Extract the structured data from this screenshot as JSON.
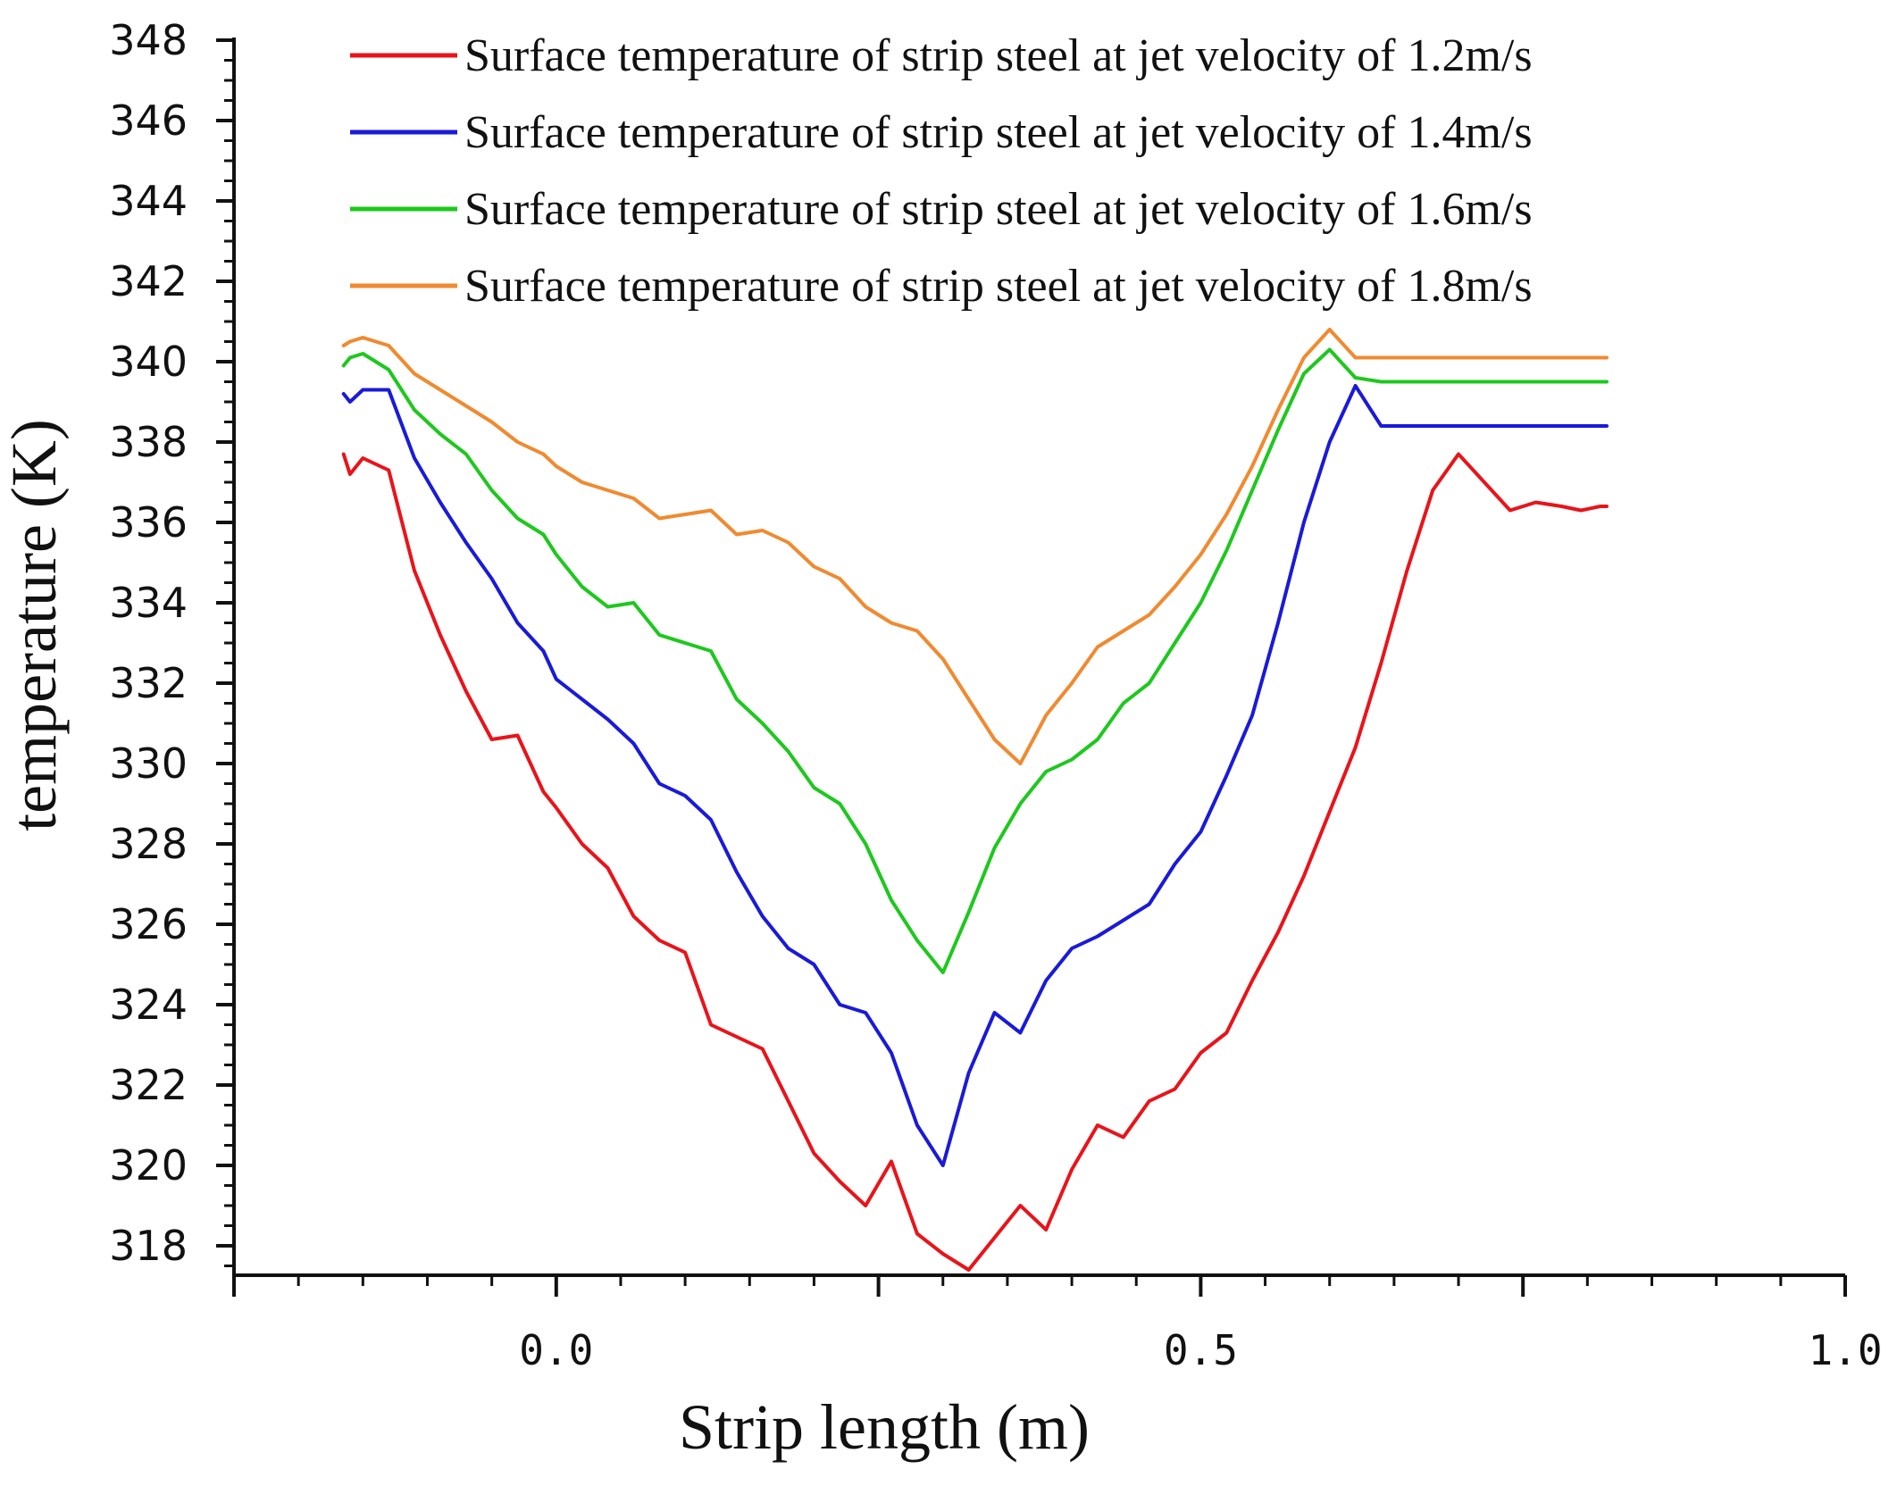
{
  "chart_data": {
    "type": "line",
    "title": "",
    "xlabel": "Strip length (m)",
    "ylabel": "temperature (K)",
    "xlim": [
      -0.25,
      1.0
    ],
    "ylim": [
      317,
      348
    ],
    "x_ticks": [
      0.0,
      0.5,
      1.0
    ],
    "x_tick_labels": [
      "0.0",
      "0.5",
      "1.0"
    ],
    "y_ticks": [
      318,
      320,
      322,
      324,
      326,
      328,
      330,
      332,
      334,
      336,
      338,
      340,
      342,
      344,
      346,
      348
    ],
    "y_tick_labels": [
      "318",
      "320",
      "322",
      "324",
      "326",
      "328",
      "330",
      "332",
      "334",
      "336",
      "338",
      "340",
      "342",
      "344",
      "346",
      "348"
    ],
    "grid": false,
    "legend_position": "top",
    "series": [
      {
        "name": "Surface temperature of strip steel at jet velocity of 1.2m/s",
        "color": "#e8141a",
        "x": [
          -0.165,
          -0.16,
          -0.15,
          -0.13,
          -0.11,
          -0.09,
          -0.07,
          -0.05,
          -0.03,
          -0.01,
          0.0,
          0.02,
          0.04,
          0.06,
          0.08,
          0.1,
          0.12,
          0.14,
          0.16,
          0.18,
          0.2,
          0.22,
          0.24,
          0.26,
          0.28,
          0.3,
          0.32,
          0.34,
          0.36,
          0.38,
          0.4,
          0.42,
          0.44,
          0.46,
          0.48,
          0.5,
          0.52,
          0.54,
          0.56,
          0.58,
          0.6,
          0.62,
          0.64,
          0.66,
          0.68,
          0.7,
          0.72,
          0.74,
          0.76,
          0.78,
          0.795,
          0.81,
          0.815
        ],
        "y": [
          337.7,
          337.2,
          337.6,
          337.3,
          334.8,
          333.2,
          331.8,
          330.6,
          330.7,
          329.3,
          328.9,
          328.0,
          327.4,
          326.2,
          325.6,
          325.3,
          323.5,
          323.2,
          322.9,
          321.6,
          320.3,
          319.6,
          319.0,
          320.1,
          318.3,
          317.8,
          317.4,
          318.2,
          319.0,
          318.4,
          319.9,
          321.0,
          320.7,
          321.6,
          321.9,
          322.8,
          323.3,
          324.6,
          325.8,
          327.2,
          328.8,
          330.4,
          332.5,
          334.8,
          336.8,
          337.7,
          337.0,
          336.3,
          336.5,
          336.4,
          336.3,
          336.4,
          336.4
        ]
      },
      {
        "name": "Surface temperature of strip steel at jet velocity of 1.4m/s",
        "color": "#1a1ad8",
        "x": [
          -0.165,
          -0.16,
          -0.15,
          -0.13,
          -0.11,
          -0.09,
          -0.07,
          -0.05,
          -0.03,
          -0.01,
          0.0,
          0.02,
          0.04,
          0.06,
          0.08,
          0.1,
          0.12,
          0.14,
          0.16,
          0.18,
          0.2,
          0.22,
          0.24,
          0.26,
          0.28,
          0.3,
          0.32,
          0.34,
          0.36,
          0.38,
          0.4,
          0.42,
          0.44,
          0.46,
          0.48,
          0.5,
          0.52,
          0.54,
          0.56,
          0.58,
          0.6,
          0.62,
          0.64,
          0.66,
          0.68,
          0.7,
          0.72,
          0.74,
          0.76,
          0.78,
          0.795,
          0.81,
          0.815
        ],
        "y": [
          339.2,
          339.0,
          339.3,
          339.3,
          337.6,
          336.5,
          335.5,
          334.6,
          333.5,
          332.8,
          332.1,
          331.6,
          331.1,
          330.5,
          329.5,
          329.2,
          328.6,
          327.3,
          326.2,
          325.4,
          325.0,
          324.0,
          323.8,
          322.8,
          321.0,
          320.0,
          322.3,
          323.8,
          323.3,
          324.6,
          325.4,
          325.7,
          326.1,
          326.5,
          327.5,
          328.3,
          329.7,
          331.2,
          333.5,
          336.0,
          338.0,
          339.4,
          338.4,
          338.4,
          338.4,
          338.4,
          338.4,
          338.4,
          338.4,
          338.4,
          338.4,
          338.4,
          338.4
        ]
      },
      {
        "name": "Surface temperature of strip steel at jet velocity of 1.6m/s",
        "color": "#1ec81e",
        "x": [
          -0.165,
          -0.16,
          -0.15,
          -0.13,
          -0.11,
          -0.09,
          -0.07,
          -0.05,
          -0.03,
          -0.01,
          0.0,
          0.02,
          0.04,
          0.06,
          0.08,
          0.1,
          0.12,
          0.14,
          0.16,
          0.18,
          0.2,
          0.22,
          0.24,
          0.26,
          0.28,
          0.3,
          0.32,
          0.34,
          0.36,
          0.38,
          0.4,
          0.42,
          0.44,
          0.46,
          0.48,
          0.5,
          0.52,
          0.54,
          0.56,
          0.58,
          0.6,
          0.62,
          0.64,
          0.66,
          0.68,
          0.7,
          0.72,
          0.74,
          0.76,
          0.78,
          0.795,
          0.81,
          0.815
        ],
        "y": [
          339.9,
          340.1,
          340.2,
          339.8,
          338.8,
          338.2,
          337.7,
          336.8,
          336.1,
          335.7,
          335.2,
          334.4,
          333.9,
          334.0,
          333.2,
          333.0,
          332.8,
          331.6,
          331.0,
          330.3,
          329.4,
          329.0,
          328.0,
          326.6,
          325.6,
          324.8,
          326.3,
          327.9,
          329.0,
          329.8,
          330.1,
          330.6,
          331.5,
          332.0,
          333.0,
          334.0,
          335.3,
          336.8,
          338.3,
          339.7,
          340.3,
          339.6,
          339.5,
          339.5,
          339.5,
          339.5,
          339.5,
          339.5,
          339.5,
          339.5,
          339.5,
          339.5,
          339.5
        ]
      },
      {
        "name": "Surface temperature of strip steel at jet velocity of 1.8m/s",
        "color": "#f08a30",
        "x": [
          -0.165,
          -0.16,
          -0.15,
          -0.13,
          -0.11,
          -0.09,
          -0.07,
          -0.05,
          -0.03,
          -0.01,
          0.0,
          0.02,
          0.04,
          0.06,
          0.08,
          0.1,
          0.12,
          0.14,
          0.16,
          0.18,
          0.2,
          0.22,
          0.24,
          0.26,
          0.28,
          0.3,
          0.32,
          0.34,
          0.36,
          0.38,
          0.4,
          0.42,
          0.44,
          0.46,
          0.48,
          0.5,
          0.52,
          0.54,
          0.56,
          0.58,
          0.6,
          0.62,
          0.64,
          0.66,
          0.68,
          0.7,
          0.72,
          0.74,
          0.76,
          0.78,
          0.795,
          0.81,
          0.815
        ],
        "y": [
          340.4,
          340.5,
          340.6,
          340.4,
          339.7,
          339.3,
          338.9,
          338.5,
          338.0,
          337.7,
          337.4,
          337.0,
          336.8,
          336.6,
          336.1,
          336.2,
          336.3,
          335.7,
          335.8,
          335.5,
          334.9,
          334.6,
          333.9,
          333.5,
          333.3,
          332.6,
          331.6,
          330.6,
          330.0,
          331.2,
          332.0,
          332.9,
          333.3,
          333.7,
          334.4,
          335.2,
          336.2,
          337.4,
          338.8,
          340.1,
          340.8,
          340.1,
          340.1,
          340.1,
          340.1,
          340.1,
          340.1,
          340.1,
          340.1,
          340.1,
          340.1,
          340.1,
          340.1
        ]
      }
    ]
  }
}
